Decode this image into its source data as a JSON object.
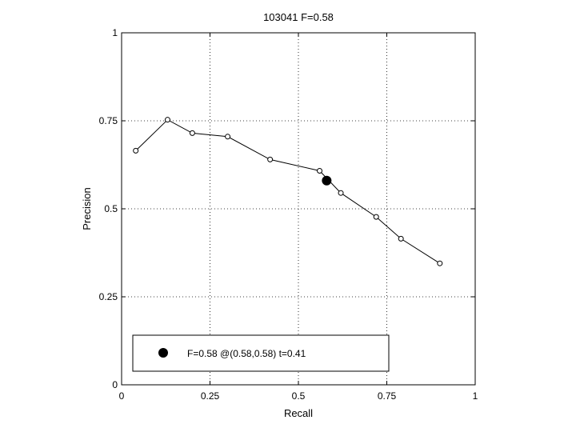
{
  "chart_data": {
    "type": "line",
    "title": "103041 F=0.58",
    "xlabel": "Recall",
    "ylabel": "Precision",
    "xlim": [
      0,
      1
    ],
    "ylim": [
      0,
      1
    ],
    "grid": true,
    "xticks": [
      0,
      0.25,
      0.5,
      0.75,
      1
    ],
    "yticks": [
      0,
      0.25,
      0.5,
      0.75,
      1
    ],
    "xtick_labels": [
      "0",
      "0.25",
      "0.5",
      "0.75",
      "1"
    ],
    "ytick_labels": [
      "0",
      "0.25",
      "0.5",
      "0.75",
      "1"
    ],
    "series": [
      {
        "x": [
          0.04,
          0.13,
          0.2,
          0.3,
          0.42,
          0.56,
          0.62,
          0.72,
          0.79,
          0.9
        ],
        "y": [
          0.665,
          0.753,
          0.715,
          0.705,
          0.64,
          0.608,
          0.545,
          0.477,
          0.415,
          0.345
        ],
        "marker": "open-circle",
        "color": "#000000"
      }
    ],
    "highlight": {
      "x": 0.58,
      "y": 0.58,
      "marker": "filled-circle",
      "color": "#000000"
    },
    "legend": {
      "text": "F=0.58 @(0.58,0.58) t=0.41",
      "position": "bottom-left"
    }
  }
}
